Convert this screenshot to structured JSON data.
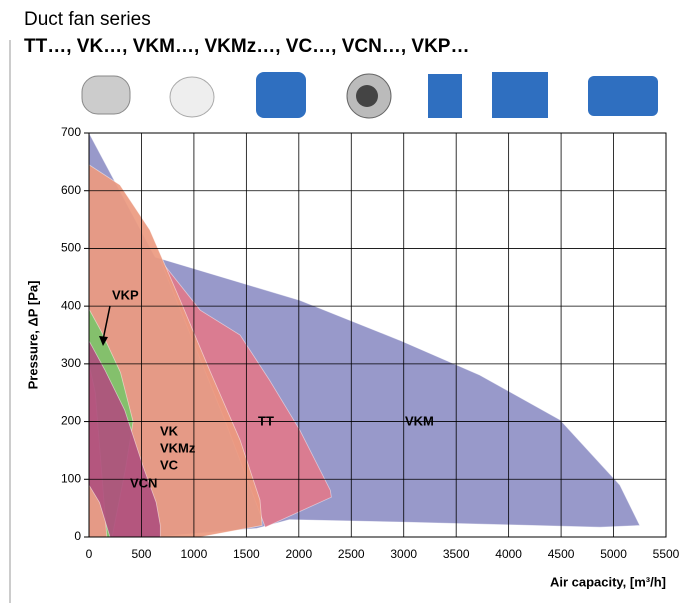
{
  "chart_data": {
    "type": "region",
    "title": "Duct fan series",
    "subtitle": "TT…, VK…, VKM…, VKMz…, VC…, VCN…, VKP…",
    "y_label": "Pressure, ΔP [Pa]",
    "x_label": "Air capacity, [m³/h]",
    "xlim": [
      0,
      5500
    ],
    "ylim": [
      0,
      700
    ],
    "xticks": [
      0,
      500,
      1000,
      1500,
      2000,
      2500,
      3000,
      3500,
      4000,
      4500,
      5000,
      5500
    ],
    "yticks": [
      0,
      100,
      200,
      300,
      400,
      500,
      600,
      700
    ],
    "grid": true,
    "regions": [
      {
        "labels": [
          "VKM"
        ],
        "color": "#8f90c6",
        "x": [
          0,
          630,
          2010,
          2960,
          3720,
          4490,
          5060,
          5250,
          4870,
          2960,
          1910,
          1600,
          600,
          0
        ],
        "y": [
          700,
          485,
          410,
          341,
          281,
          203,
          90,
          20,
          17,
          26,
          30,
          15,
          0,
          0
        ]
      },
      {
        "labels": [
          "TT"
        ],
        "color": "#e07a8c",
        "x": [
          680,
          1060,
          1440,
          1720,
          2010,
          2300,
          2310,
          1680,
          1300
        ],
        "y": [
          480,
          393,
          350,
          272,
          185,
          81,
          69,
          17,
          200
        ]
      },
      {
        "labels": [
          "VK",
          "VKMz",
          "VC"
        ],
        "color": "#ec9a80",
        "x": [
          0,
          295,
          580,
          870,
          1150,
          1440,
          1630,
          1650,
          1060,
          0
        ],
        "y": [
          645,
          610,
          532,
          410,
          289,
          168,
          64,
          20,
          0,
          0
        ]
      },
      {
        "labels": [
          "VKP"
        ],
        "color": "#7cc36a",
        "x": [
          0,
          120,
          300,
          420,
          350,
          220,
          170,
          60,
          0
        ],
        "y": [
          395,
          355,
          285,
          200,
          120,
          0,
          0,
          250,
          300
        ]
      },
      {
        "labels": [
          "VCN"
        ],
        "color": "#b0507e",
        "x": [
          0,
          150,
          340,
          520,
          640,
          680,
          680,
          200,
          100,
          0
        ],
        "y": [
          340,
          290,
          220,
          120,
          60,
          20,
          0,
          0,
          60,
          90
        ]
      }
    ]
  }
}
